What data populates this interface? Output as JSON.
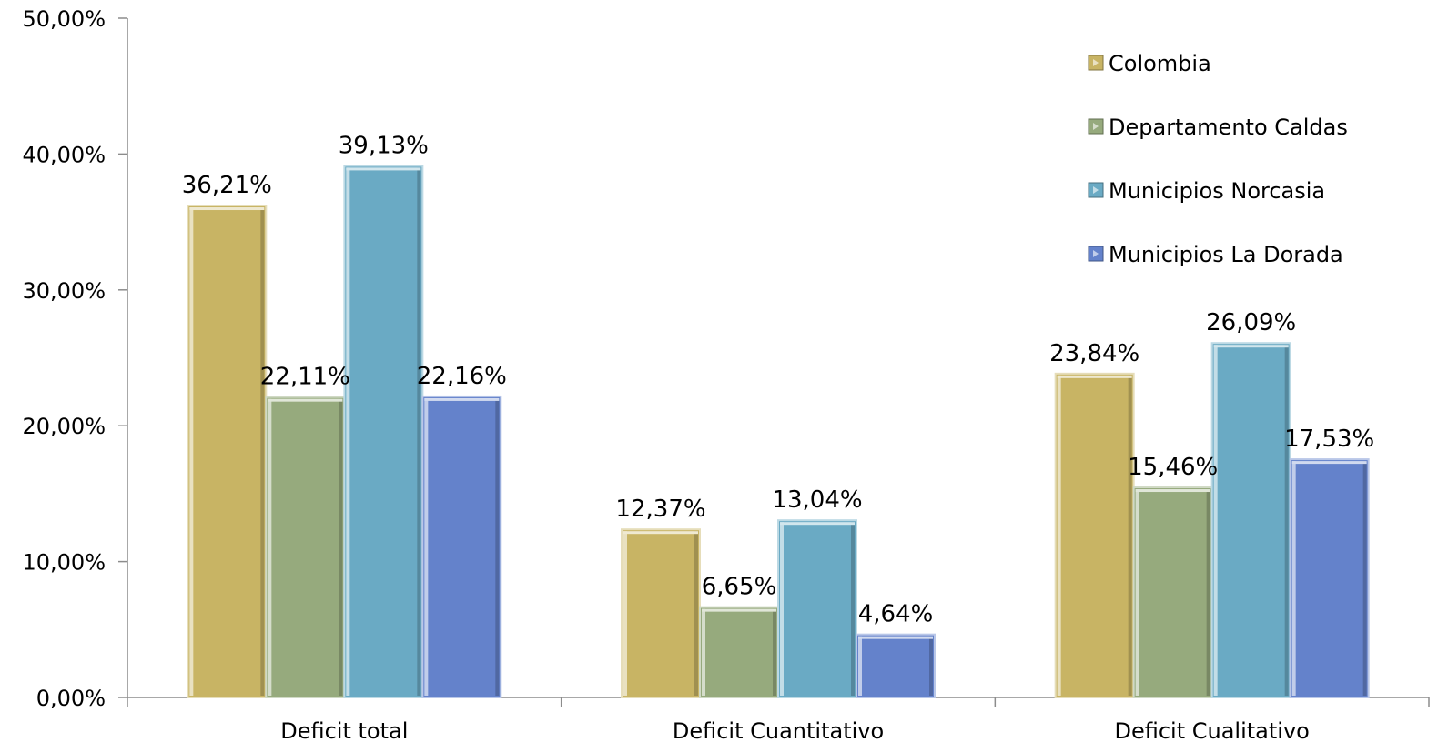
{
  "chart_data": {
    "type": "bar",
    "title": "",
    "xlabel": "",
    "ylabel": "",
    "categories": [
      "Deficit total",
      "Deficit Cuantitativo",
      "Deficit Cualitativo"
    ],
    "series": [
      {
        "name": "Colombia",
        "values": [
          36.21,
          12.37,
          23.84
        ],
        "labels": [
          "36,21%",
          "12,37%",
          "23,84%"
        ],
        "color": "#C8B464"
      },
      {
        "name": "Departamento Caldas",
        "values": [
          22.11,
          6.65,
          15.46
        ],
        "labels": [
          "22,11%",
          "6,65%",
          "15,46%"
        ],
        "color": "#96AA7D"
      },
      {
        "name": "Municipios Norcasia",
        "values": [
          39.13,
          13.04,
          26.09
        ],
        "labels": [
          "39,13%",
          "13,04%",
          "26,09%"
        ],
        "color": "#6AAAC4"
      },
      {
        "name": "Municipios La Dorada",
        "values": [
          22.16,
          4.64,
          17.53
        ],
        "labels": [
          "22,16%",
          "4,64%",
          "17,53%"
        ],
        "color": "#6482CB"
      }
    ],
    "ylim": [
      0,
      50
    ],
    "yticks": [
      0,
      10,
      20,
      30,
      40,
      50
    ],
    "ytick_labels": [
      "0,00%",
      "10,00%",
      "20,00%",
      "30,00%",
      "40,00%",
      "50,00%"
    ],
    "legend_position": "top-right",
    "grid": false
  }
}
